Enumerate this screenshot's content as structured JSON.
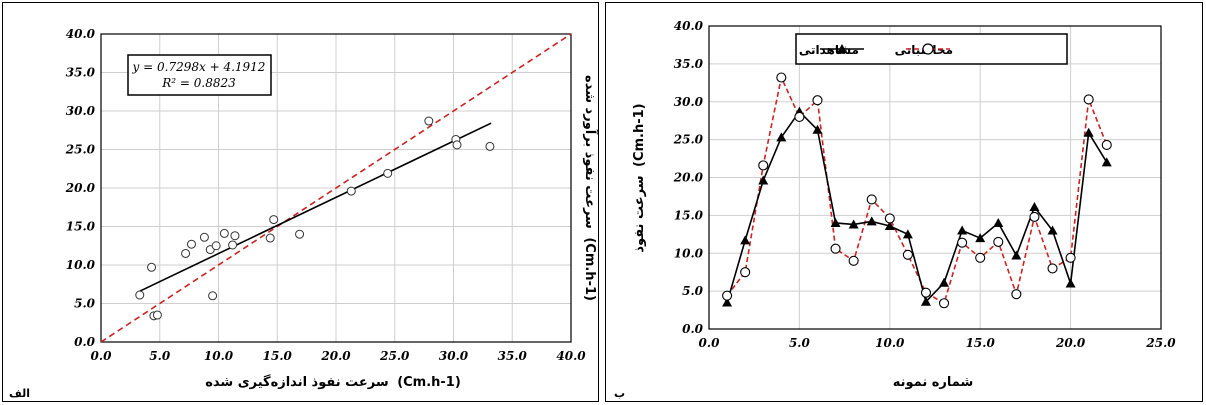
{
  "chart_data": [
    {
      "type": "scatter",
      "panel_label": "الف",
      "xlabel_text": "سرعت نفوذ اندازه‌گیری شده",
      "xlabel_unit": "(Cm.h-1)",
      "ylabel_text": "سرعت نفوذ برآورد شده",
      "ylabel_unit": "(Cm.h-1)",
      "xlim": [
        0,
        40
      ],
      "ylim": [
        0,
        40
      ],
      "xticks": [
        "0.0",
        "5.0",
        "10.0",
        "15.0",
        "20.0",
        "25.0",
        "30.0",
        "35.0",
        "40.0"
      ],
      "yticks": [
        "0.0",
        "5.0",
        "10.0",
        "15.0",
        "20.0",
        "25.0",
        "30.0",
        "35.0",
        "40.0"
      ],
      "grid": true,
      "equation": "y = 0.7298x + 4.1912",
      "r2": "R² = 0.8823",
      "trendline": {
        "slope": 0.7298,
        "intercept": 4.1912,
        "x_range": [
          3.3,
          33.2
        ],
        "color": "#000000"
      },
      "identity_line": {
        "color": "#cc2222",
        "style": "dashed"
      },
      "points": [
        [
          3.3,
          6.1
        ],
        [
          4.3,
          9.7
        ],
        [
          4.5,
          3.4
        ],
        [
          4.8,
          3.5
        ],
        [
          7.2,
          11.5
        ],
        [
          7.7,
          12.7
        ],
        [
          8.8,
          13.6
        ],
        [
          9.3,
          12.0
        ],
        [
          9.5,
          6.0
        ],
        [
          9.8,
          12.5
        ],
        [
          10.5,
          14.1
        ],
        [
          11.2,
          12.6
        ],
        [
          11.4,
          13.8
        ],
        [
          14.4,
          13.5
        ],
        [
          14.7,
          15.9
        ],
        [
          16.9,
          14.0
        ],
        [
          21.3,
          19.6
        ],
        [
          24.4,
          21.9
        ],
        [
          27.9,
          28.7
        ],
        [
          30.2,
          26.3
        ],
        [
          30.3,
          25.6
        ],
        [
          33.1,
          25.4
        ]
      ]
    },
    {
      "type": "line",
      "panel_label": "ب",
      "xlabel": "شماره نمونه",
      "ylabel_text": "سرعت نفوذ",
      "ylabel_unit": "(Cm.h-1)",
      "xlim": [
        0,
        25
      ],
      "ylim": [
        0,
        40
      ],
      "xticks": [
        "0.0",
        "5.0",
        "10.0",
        "15.0",
        "20.0",
        "25.0"
      ],
      "yticks": [
        "0.0",
        "5.0",
        "10.0",
        "15.0",
        "20.0",
        "25.0",
        "30.0",
        "35.0",
        "40.0"
      ],
      "grid": true,
      "legend_position": "top",
      "x": [
        1,
        2,
        3,
        4,
        5,
        6,
        7,
        8,
        9,
        10,
        11,
        12,
        13,
        14,
        15,
        16,
        17,
        18,
        19,
        20,
        21,
        22
      ],
      "series": [
        {
          "name": "مشاهداتی",
          "color": "#000000",
          "marker": "triangle",
          "line_style": "solid",
          "values": [
            3.5,
            11.7,
            19.6,
            25.3,
            28.7,
            26.3,
            14.0,
            13.8,
            14.2,
            13.6,
            12.5,
            3.6,
            6.1,
            13.0,
            12.0,
            14.0,
            9.7,
            16.1,
            13.0,
            6.0,
            25.9,
            22.0
          ]
        },
        {
          "name": "محاسباتی",
          "color": "#cc2222",
          "marker": "circle",
          "line_style": "dashed",
          "values": [
            4.4,
            7.5,
            21.6,
            33.2,
            28.0,
            30.2,
            10.6,
            9.0,
            17.1,
            14.6,
            9.8,
            4.8,
            3.4,
            11.4,
            9.4,
            11.5,
            4.6,
            14.8,
            8.0,
            9.4,
            30.3,
            24.3
          ]
        }
      ]
    }
  ]
}
